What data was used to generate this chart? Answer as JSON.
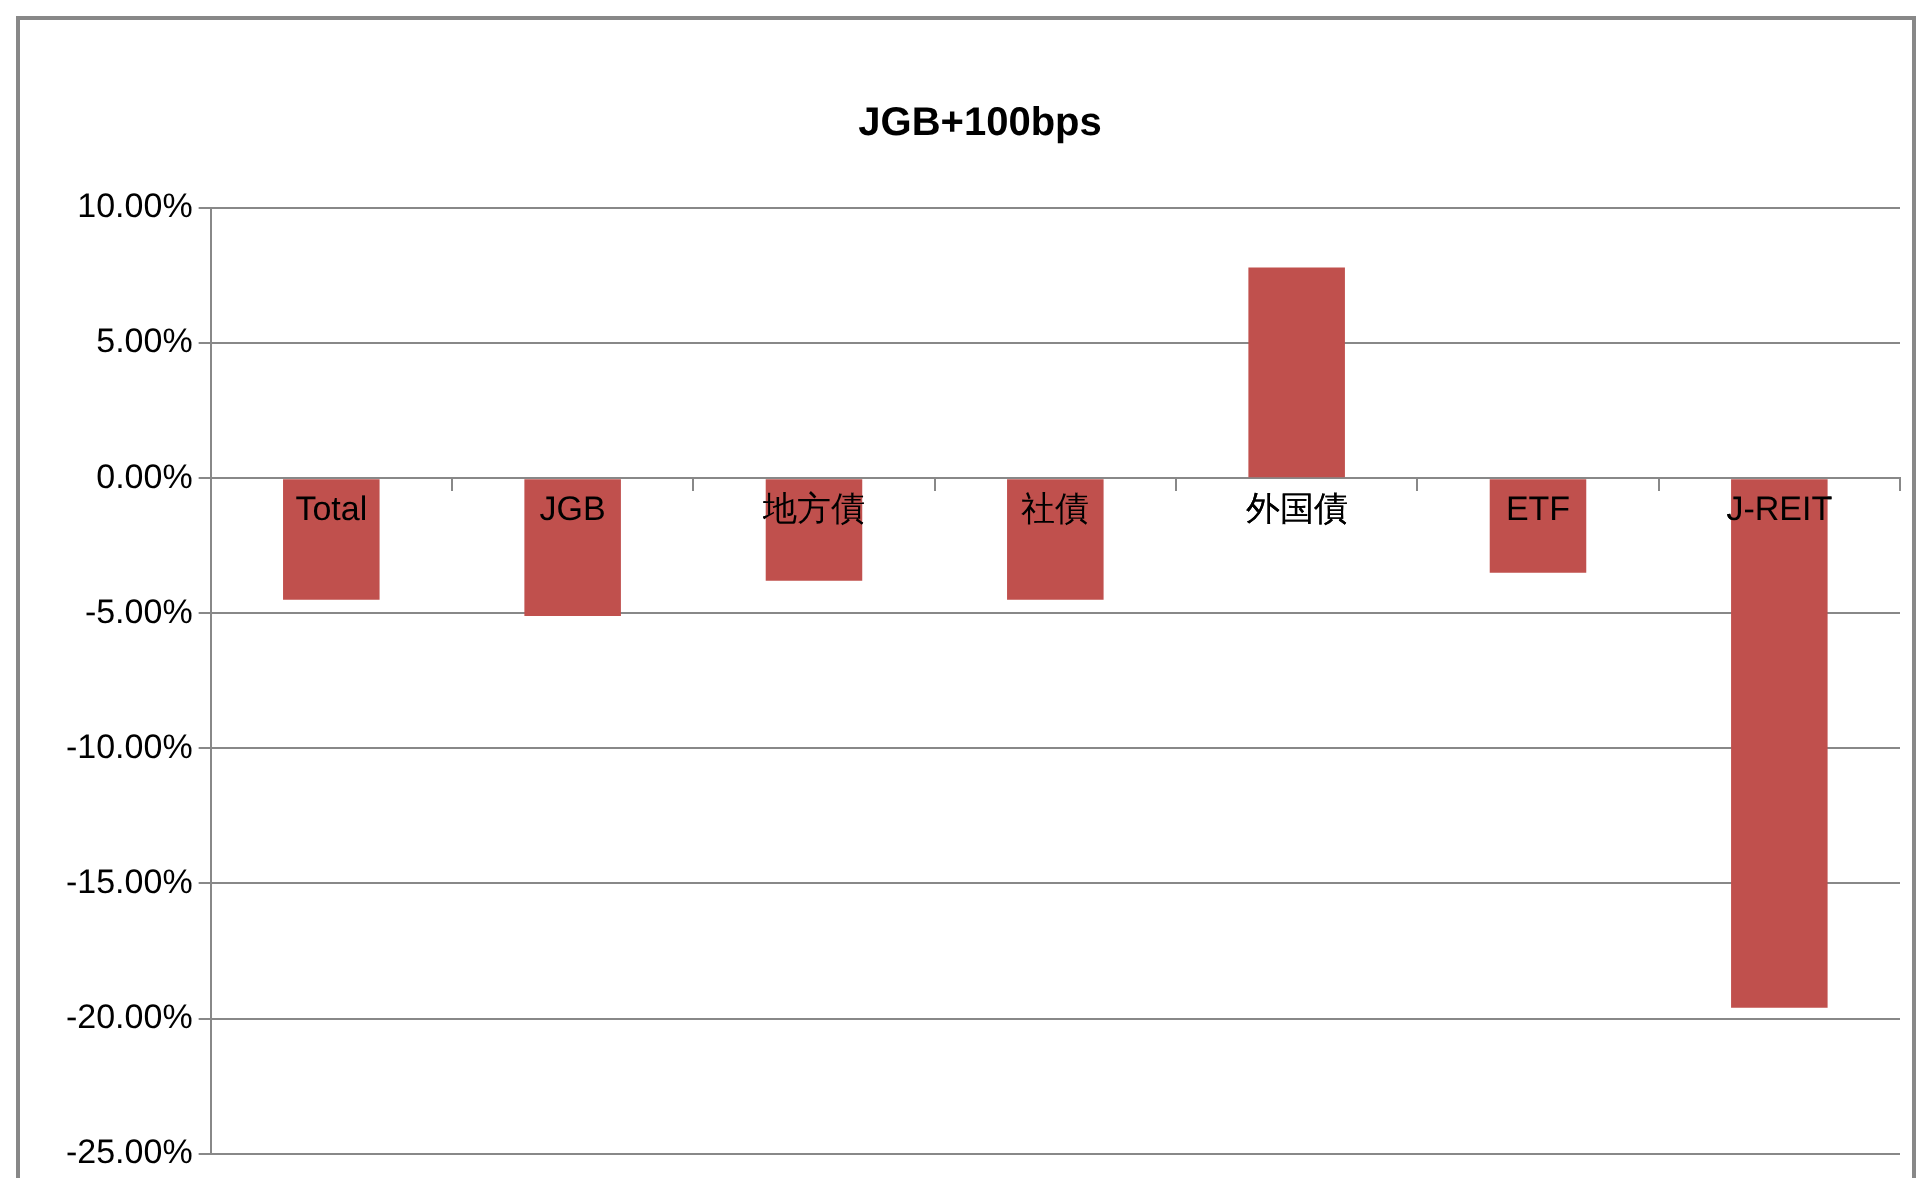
{
  "chart_data": {
    "type": "bar",
    "title": "JGB+100bps",
    "categories": [
      "Total",
      "JGB",
      "地方債",
      "社債",
      "外国債",
      "ETF",
      "J-REIT"
    ],
    "values": [
      -4.5,
      -5.1,
      -3.8,
      -4.5,
      7.8,
      -3.5,
      -19.6
    ],
    "color": "#c0504d",
    "ylim": [
      -25,
      10
    ],
    "yticks": [
      {
        "value": 10,
        "label": "10.00%"
      },
      {
        "value": 5,
        "label": "5.00%"
      },
      {
        "value": 0,
        "label": "0.00%"
      },
      {
        "value": -5,
        "label": "-5.00%"
      },
      {
        "value": -10,
        "label": "-10.00%"
      },
      {
        "value": -15,
        "label": "-15.00%"
      },
      {
        "value": -20,
        "label": "-20.00%"
      },
      {
        "value": -25,
        "label": "-25.00%"
      }
    ],
    "grid": "y",
    "legend": false
  }
}
